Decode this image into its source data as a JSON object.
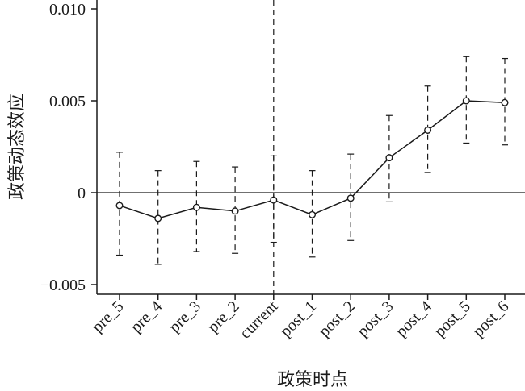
{
  "chart_data": {
    "type": "line",
    "title": "",
    "xlabel": "政策时点",
    "ylabel": "政策动态效应",
    "categories": [
      "pre_5",
      "pre_4",
      "pre_3",
      "pre_2",
      "current",
      "post_1",
      "post_2",
      "post_3",
      "post_4",
      "post_5",
      "post_6"
    ],
    "series": [
      {
        "values": [
          -0.0007,
          -0.0014,
          -0.0008,
          -0.001,
          -0.0004,
          -0.0012,
          -0.0003,
          0.0019,
          0.0034,
          0.005,
          0.0049
        ],
        "ci_lower": [
          -0.0034,
          -0.0039,
          -0.0032,
          -0.0033,
          -0.0027,
          -0.0035,
          -0.0026,
          -0.0005,
          0.0011,
          0.0027,
          0.0026
        ],
        "ci_upper": [
          0.0022,
          0.0012,
          0.0017,
          0.0014,
          0.002,
          0.0012,
          0.0021,
          0.0042,
          0.0058,
          0.0074,
          0.0073
        ]
      }
    ],
    "ylim": [
      -0.0052,
      0.0102
    ],
    "yticks": [
      -0.005,
      0,
      0.005,
      0.01
    ],
    "ytick_labels": [
      "−0.005",
      "0",
      "0.005",
      "0.010"
    ],
    "reference_line_y": 0,
    "vertical_reference": "current",
    "grid": false,
    "colors": {
      "line": "#1a1a1a",
      "background": "#ffffff"
    }
  }
}
